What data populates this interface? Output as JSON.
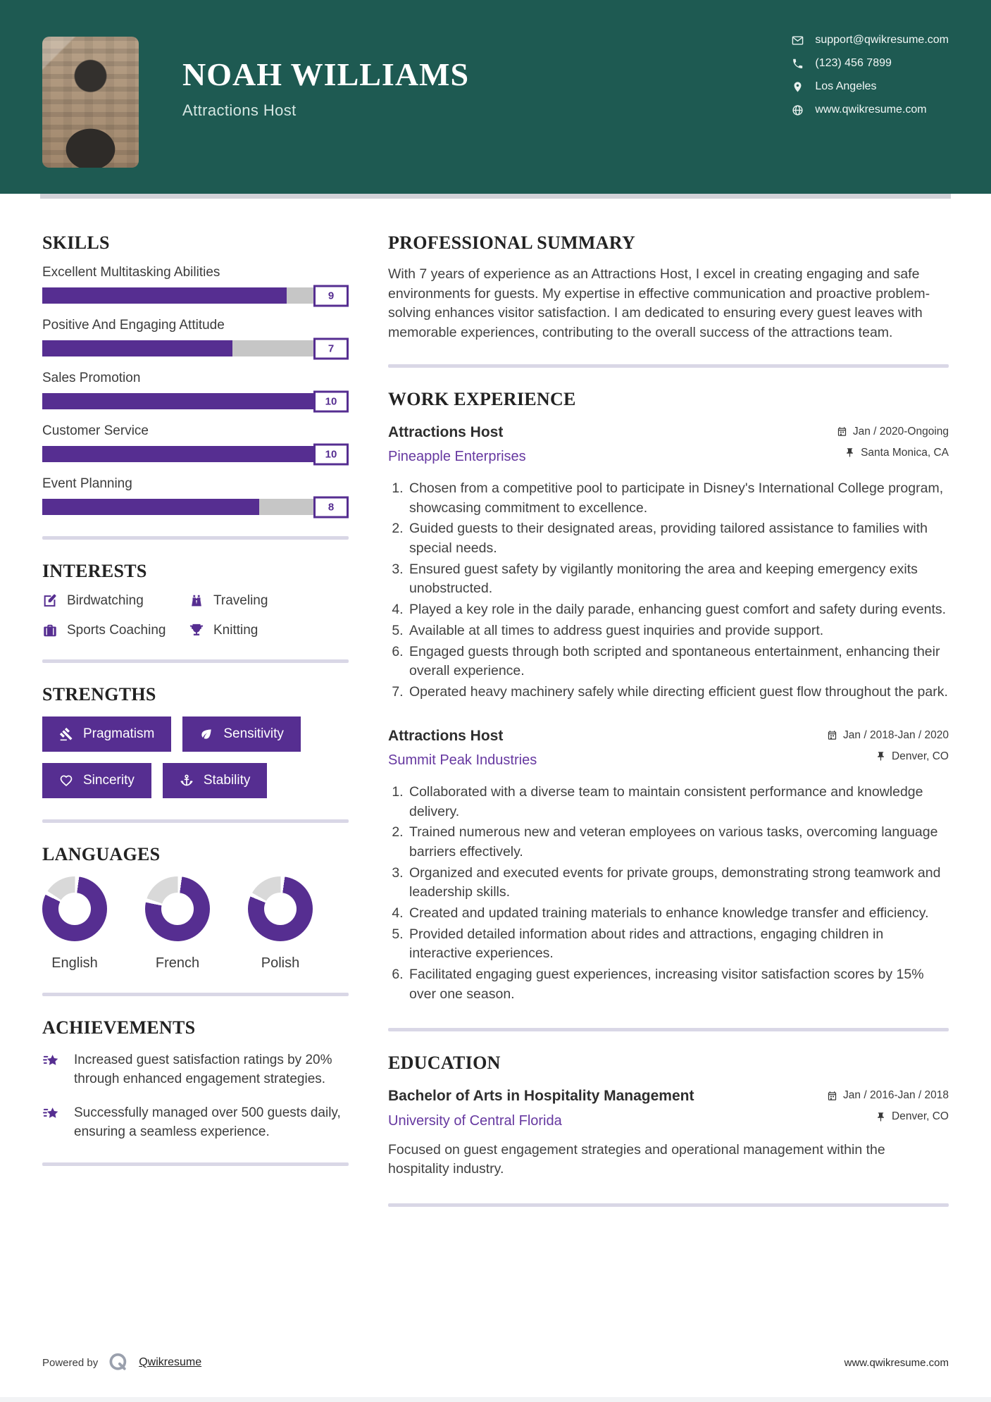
{
  "header": {
    "name": "NOAH WILLIAMS",
    "title": "Attractions Host",
    "contact": [
      {
        "icon": "email-icon",
        "text": "support@qwikresume.com"
      },
      {
        "icon": "phone-icon",
        "text": "(123) 456 7899"
      },
      {
        "icon": "location-icon",
        "text": "Los Angeles"
      },
      {
        "icon": "globe-icon",
        "text": "www.qwikresume.com"
      }
    ]
  },
  "skills": {
    "heading": "SKILLS",
    "items": [
      {
        "label": "Excellent Multitasking Abilities",
        "value": 9
      },
      {
        "label": "Positive And Engaging Attitude",
        "value": 7
      },
      {
        "label": "Sales Promotion",
        "value": 10
      },
      {
        "label": "Customer Service",
        "value": 10
      },
      {
        "label": "Event Planning",
        "value": 8
      }
    ]
  },
  "interests": {
    "heading": "INTERESTS",
    "items": [
      {
        "icon": "pencil-edit-icon",
        "label": "Birdwatching"
      },
      {
        "icon": "binoculars-icon",
        "label": "Traveling"
      },
      {
        "icon": "briefcase-icon",
        "label": "Sports Coaching"
      },
      {
        "icon": "trophy-icon",
        "label": "Knitting"
      }
    ]
  },
  "strengths": {
    "heading": "STRENGTHS",
    "items": [
      {
        "icon": "gavel-icon",
        "label": "Pragmatism"
      },
      {
        "icon": "leaf-icon",
        "label": "Sensitivity"
      },
      {
        "icon": "heart-icon",
        "label": "Sincerity"
      },
      {
        "icon": "anchor-icon",
        "label": "Stability"
      }
    ]
  },
  "languages": {
    "heading": "LANGUAGES",
    "items": [
      {
        "label": "English",
        "percent": 80
      },
      {
        "label": "French",
        "percent": 76
      },
      {
        "label": "Polish",
        "percent": 79
      }
    ]
  },
  "achievements": {
    "heading": "ACHIEVEMENTS",
    "items": [
      "Increased guest satisfaction ratings by 20% through enhanced engagement strategies.",
      "Successfully managed over 500 guests daily, ensuring a seamless experience."
    ]
  },
  "summary": {
    "heading": "PROFESSIONAL SUMMARY",
    "text": "With 7 years of experience as an Attractions Host, I excel in creating engaging and safe environments for guests. My expertise in effective communication and proactive problem-solving enhances visitor satisfaction. I am dedicated to ensuring every guest leaves with memorable experiences, contributing to the overall success of the attractions team."
  },
  "experience": {
    "heading": "WORK EXPERIENCE",
    "jobs": [
      {
        "title": "Attractions Host",
        "company": "Pineapple Enterprises",
        "date": "Jan / 2020-Ongoing",
        "location": "Santa Monica, CA",
        "bullets": [
          "Chosen from a competitive pool to participate in Disney's International College program, showcasing commitment to excellence.",
          "Guided guests to their designated areas, providing tailored assistance to families with special needs.",
          "Ensured guest safety by vigilantly monitoring the area and keeping emergency exits unobstructed.",
          "Played a key role in the daily parade, enhancing guest comfort and safety during events.",
          "Available at all times to address guest inquiries and provide support.",
          "Engaged guests through both scripted and spontaneous entertainment, enhancing their overall experience.",
          "Operated heavy machinery safely while directing efficient guest flow throughout the park."
        ]
      },
      {
        "title": "Attractions Host",
        "company": "Summit Peak Industries",
        "date": "Jan / 2018-Jan / 2020",
        "location": "Denver, CO",
        "bullets": [
          "Collaborated with a diverse team to maintain consistent performance and knowledge delivery.",
          "Trained numerous new and veteran employees on various tasks, overcoming language barriers effectively.",
          "Organized and executed events for private groups, demonstrating strong teamwork and leadership skills.",
          "Created and updated training materials to enhance knowledge transfer and efficiency.",
          "Provided detailed information about rides and attractions, engaging children in interactive experiences.",
          "Facilitated engaging guest experiences, increasing visitor satisfaction scores by 15% over one season."
        ]
      }
    ]
  },
  "education": {
    "heading": "EDUCATION",
    "degree": "Bachelor of Arts in Hospitality Management",
    "school": "University of Central Florida",
    "date": "Jan / 2016-Jan / 2018",
    "location": "Denver, CO",
    "description": "Focused on guest engagement strategies and operational management within the hospitality industry."
  },
  "footer": {
    "powered_by": "Powered by",
    "brand": "Qwikresume",
    "site": "www.qwikresume.com"
  },
  "colors": {
    "accent": "#562e91",
    "accent_link": "#6638a0",
    "header_bg": "#1e5a52",
    "bar_track": "#c6c6c6",
    "donut_rest": "#d9d9d9",
    "divider": "#d9d7e6"
  }
}
